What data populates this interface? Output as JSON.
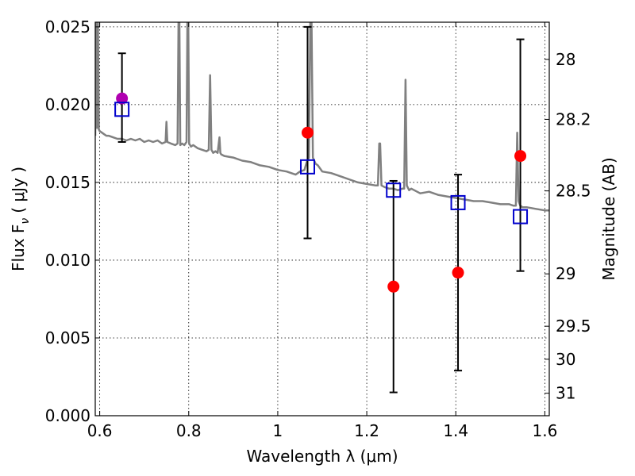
{
  "chart_data": {
    "type": "scatter",
    "xlabel": "Wavelength  λ (μm)",
    "ylabel": "Flux  F",
    "ylabel_subscript": "ν",
    "ylabel_unit": "( μJy )",
    "y2label": "Magnitude (AB)",
    "xlim": [
      0.59,
      1.61
    ],
    "ylim": [
      0.0,
      0.0253
    ],
    "xticks": [
      0.6,
      0.8,
      1.0,
      1.2,
      1.4,
      1.6
    ],
    "xtick_labels": [
      "0.6",
      "0.8",
      "1",
      "1.2",
      "1.4",
      "1.6"
    ],
    "yticks": [
      0.0,
      0.005,
      0.01,
      0.015,
      0.02,
      0.025
    ],
    "ytick_labels": [
      "0.000",
      "0.005",
      "0.010",
      "0.015",
      "0.020",
      "0.025"
    ],
    "y2ticks": [
      28,
      28.2,
      28.5,
      29,
      29.5,
      30,
      31
    ],
    "y2tick_labels": [
      "28",
      "28.2",
      "28.5",
      "29",
      "29.5",
      "30",
      "31"
    ],
    "grid": true,
    "colors": {
      "spectrum": "#808080",
      "observed": "#ff0000",
      "observed_first": "#b000b0",
      "model": "#0000cc",
      "errorbar": "#000000"
    },
    "spectrum": {
      "x": [
        0.59,
        0.592,
        0.594,
        0.596,
        0.598,
        0.6,
        0.605,
        0.61,
        0.615,
        0.62,
        0.63,
        0.64,
        0.65,
        0.66,
        0.67,
        0.68,
        0.69,
        0.7,
        0.71,
        0.72,
        0.73,
        0.74,
        0.748,
        0.75,
        0.752,
        0.76,
        0.77,
        0.775,
        0.777,
        0.779,
        0.781,
        0.785,
        0.79,
        0.795,
        0.797,
        0.799,
        0.801,
        0.805,
        0.81,
        0.82,
        0.83,
        0.84,
        0.845,
        0.848,
        0.851,
        0.855,
        0.86,
        0.865,
        0.869,
        0.871,
        0.873,
        0.88,
        0.9,
        0.92,
        0.94,
        0.96,
        0.98,
        1.0,
        1.02,
        1.04,
        1.05,
        1.06,
        1.065,
        1.07,
        1.073,
        1.076,
        1.079,
        1.082,
        1.085,
        1.09,
        1.1,
        1.12,
        1.14,
        1.16,
        1.18,
        1.2,
        1.22,
        1.225,
        1.228,
        1.23,
        1.233,
        1.24,
        1.25,
        1.26,
        1.27,
        1.28,
        1.284,
        1.287,
        1.29,
        1.295,
        1.3,
        1.32,
        1.34,
        1.36,
        1.38,
        1.4,
        1.42,
        1.44,
        1.46,
        1.48,
        1.5,
        1.52,
        1.53,
        1.535,
        1.538,
        1.541,
        1.545,
        1.55,
        1.56,
        1.58,
        1.6,
        1.61
      ],
      "y": [
        0.018,
        0.0253,
        0.0185,
        0.0253,
        0.0184,
        0.0183,
        0.0182,
        0.0181,
        0.018,
        0.018,
        0.0179,
        0.0178,
        0.0178,
        0.0177,
        0.0178,
        0.0177,
        0.0178,
        0.0176,
        0.0177,
        0.0176,
        0.0177,
        0.0175,
        0.0176,
        0.0189,
        0.0176,
        0.0175,
        0.0174,
        0.0175,
        0.0253,
        0.0253,
        0.0174,
        0.0175,
        0.0174,
        0.0176,
        0.0253,
        0.0253,
        0.0175,
        0.0173,
        0.0174,
        0.0172,
        0.0171,
        0.017,
        0.0171,
        0.0219,
        0.0171,
        0.0169,
        0.017,
        0.0169,
        0.0179,
        0.0169,
        0.0168,
        0.0167,
        0.0166,
        0.0164,
        0.0163,
        0.0161,
        0.016,
        0.0158,
        0.0157,
        0.0155,
        0.0157,
        0.0158,
        0.0163,
        0.0166,
        0.0253,
        0.0253,
        0.0166,
        0.0164,
        0.0162,
        0.0161,
        0.0157,
        0.0156,
        0.0154,
        0.0152,
        0.015,
        0.0149,
        0.0148,
        0.0148,
        0.0175,
        0.0175,
        0.0148,
        0.0147,
        0.0146,
        0.0146,
        0.0145,
        0.0146,
        0.0146,
        0.0216,
        0.0148,
        0.0145,
        0.0146,
        0.0143,
        0.0144,
        0.0142,
        0.0141,
        0.014,
        0.0139,
        0.0138,
        0.0138,
        0.0137,
        0.0136,
        0.0136,
        0.0135,
        0.0135,
        0.0182,
        0.0138,
        0.0135,
        0.0134,
        0.0134,
        0.0133,
        0.0132,
        0.0132
      ]
    },
    "series": [
      {
        "role": "observed",
        "x": [
          0.65,
          1.067,
          1.26,
          1.405,
          1.545
        ],
        "y": [
          0.0204,
          0.0182,
          0.0083,
          0.0092,
          0.0167
        ],
        "yerr_low": [
          0.0176,
          0.0114,
          0.0015,
          0.0029,
          0.0093
        ],
        "yerr_high": [
          0.0233,
          0.025,
          0.0151,
          0.0155,
          0.0242
        ]
      },
      {
        "role": "model",
        "x": [
          0.65,
          1.067,
          1.26,
          1.405,
          1.545
        ],
        "y": [
          0.0197,
          0.016,
          0.0145,
          0.0137,
          0.0128
        ]
      }
    ]
  }
}
